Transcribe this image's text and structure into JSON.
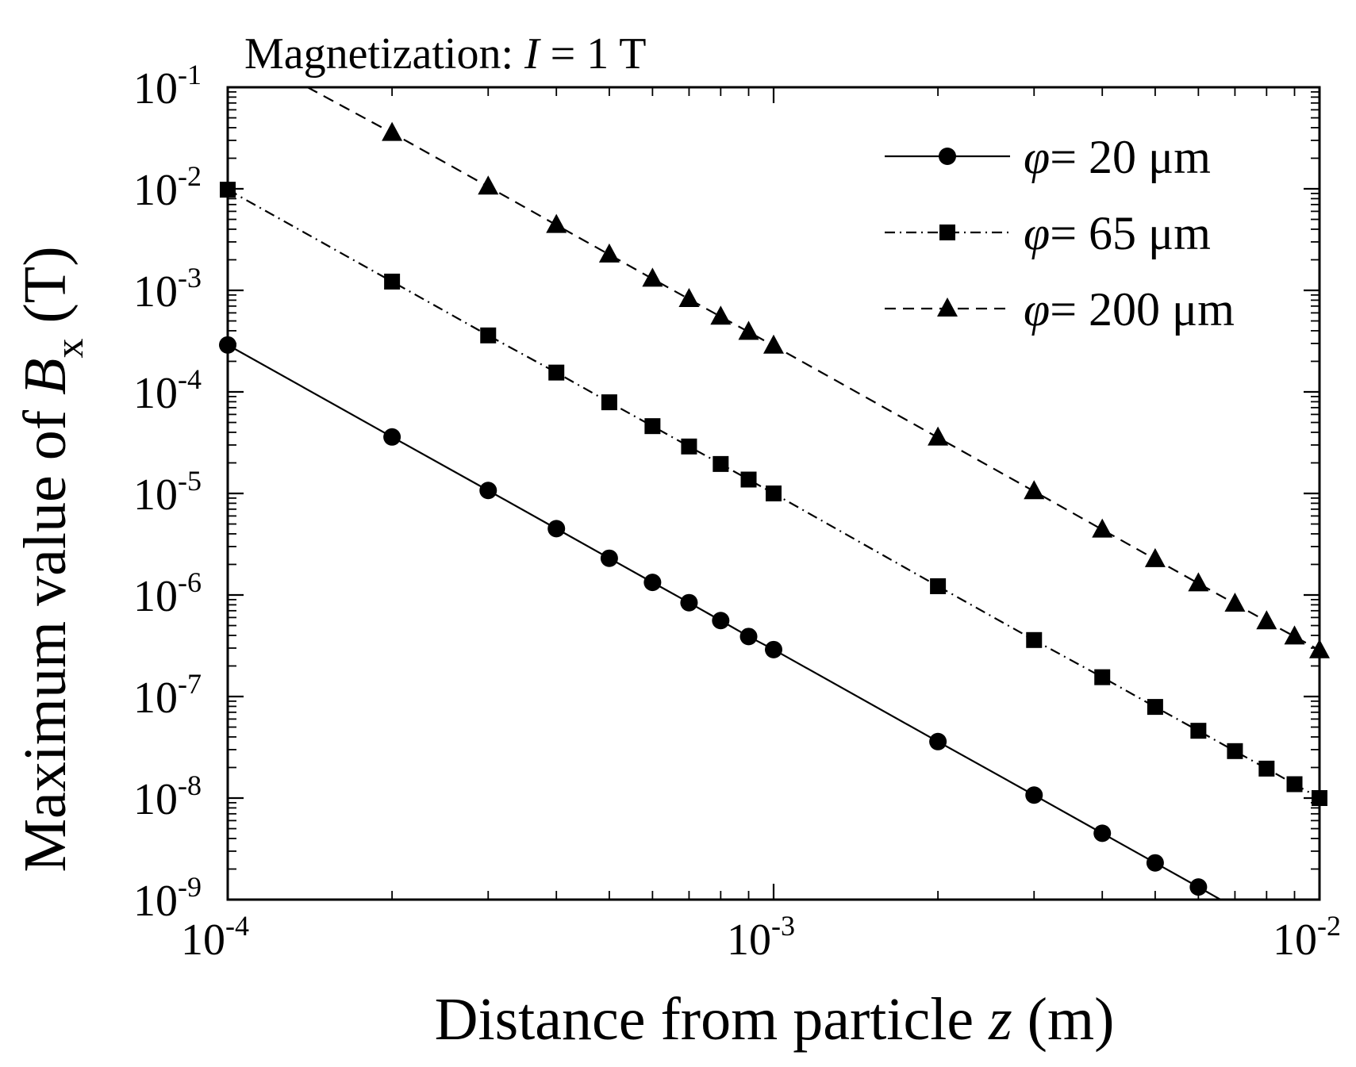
{
  "chart_data": {
    "type": "line",
    "title": "Magnetization: ",
    "title_var": "I",
    "title_rest": " = 1 T",
    "xlabel": "Distance from particle ",
    "xlabel_var": "z",
    "xlabel_unit": " (m)",
    "ylabel": "Maximum value of ",
    "ylabel_var": "B",
    "ylabel_sub": "x",
    "ylabel_unit": " (T)",
    "xscale": "log",
    "yscale": "log",
    "xlim": [
      0.0001,
      0.01
    ],
    "ylim": [
      1e-09,
      0.1
    ],
    "x_ticks": [
      {
        "base": "10",
        "exp": "-4",
        "value": 0.0001
      },
      {
        "base": "10",
        "exp": "-3",
        "value": 0.001
      },
      {
        "base": "10",
        "exp": "-2",
        "value": 0.01
      }
    ],
    "y_ticks": [
      {
        "base": "10",
        "exp": "-9",
        "value": 1e-09
      },
      {
        "base": "10",
        "exp": "-8",
        "value": 1e-08
      },
      {
        "base": "10",
        "exp": "-7",
        "value": 1e-07
      },
      {
        "base": "10",
        "exp": "-6",
        "value": 1e-06
      },
      {
        "base": "10",
        "exp": "-5",
        "value": 1e-05
      },
      {
        "base": "10",
        "exp": "-4",
        "value": 0.0001
      },
      {
        "base": "10",
        "exp": "-3",
        "value": 0.001
      },
      {
        "base": "10",
        "exp": "-2",
        "value": 0.01
      },
      {
        "base": "10",
        "exp": "-1",
        "value": 0.1
      }
    ],
    "legend_position": "top-right",
    "series": [
      {
        "id": "d20",
        "name": "φ =   20 μm",
        "legend_symbol": "φ",
        "legend_value": "=   20 μm",
        "marker": "circle",
        "line_style": "solid",
        "x": [
          0.0001,
          0.0002,
          0.0003,
          0.0004,
          0.0005,
          0.0006,
          0.0007,
          0.0008,
          0.0009,
          0.001,
          0.002,
          0.003,
          0.004,
          0.005,
          0.006
        ],
        "y": [
          0.00029,
          3.6e-05,
          1.07e-05,
          4.5e-06,
          2.3e-06,
          1.33e-06,
          8.4e-07,
          5.6e-07,
          3.9e-07,
          2.9e-07,
          3.6e-08,
          1.07e-08,
          4.5e-09,
          2.3e-09,
          1.33e-09
        ],
        "line_end": {
          "x": 0.0067,
          "y": 9.5e-10
        }
      },
      {
        "id": "d65",
        "name": "φ =   65 μm",
        "legend_symbol": "φ",
        "legend_value": "=   65 μm",
        "marker": "square",
        "line_style": "dashdot",
        "x": [
          0.0001,
          0.0002,
          0.0003,
          0.0004,
          0.0005,
          0.0006,
          0.0007,
          0.0008,
          0.0009,
          0.001,
          0.002,
          0.003,
          0.004,
          0.005,
          0.006,
          0.007,
          0.008,
          0.009,
          0.01
        ],
        "y": [
          0.0098,
          0.00122,
          0.00036,
          0.000155,
          7.9e-05,
          4.6e-05,
          2.9e-05,
          1.95e-05,
          1.37e-05,
          1e-05,
          1.22e-06,
          3.6e-07,
          1.55e-07,
          7.9e-08,
          4.6e-08,
          2.9e-08,
          1.95e-08,
          1.37e-08,
          1e-08
        ]
      },
      {
        "id": "d200",
        "name": "φ = 200 μm",
        "legend_symbol": "φ",
        "legend_value": "= 200 μm",
        "marker": "triangle",
        "line_style": "dashed",
        "x": [
          0.0002,
          0.0003,
          0.0004,
          0.0005,
          0.0006,
          0.0007,
          0.0008,
          0.0009,
          0.001,
          0.002,
          0.003,
          0.004,
          0.005,
          0.006,
          0.007,
          0.008,
          0.009,
          0.01
        ],
        "y": [
          0.0355,
          0.0105,
          0.0044,
          0.00225,
          0.0013,
          0.00082,
          0.00055,
          0.00039,
          0.000285,
          3.55e-05,
          1.05e-05,
          4.4e-06,
          2.25e-06,
          1.3e-06,
          8.2e-07,
          5.5e-07,
          3.9e-07,
          2.85e-07
        ],
        "line_start": {
          "x": 0.00014,
          "y": 0.1
        }
      }
    ]
  }
}
